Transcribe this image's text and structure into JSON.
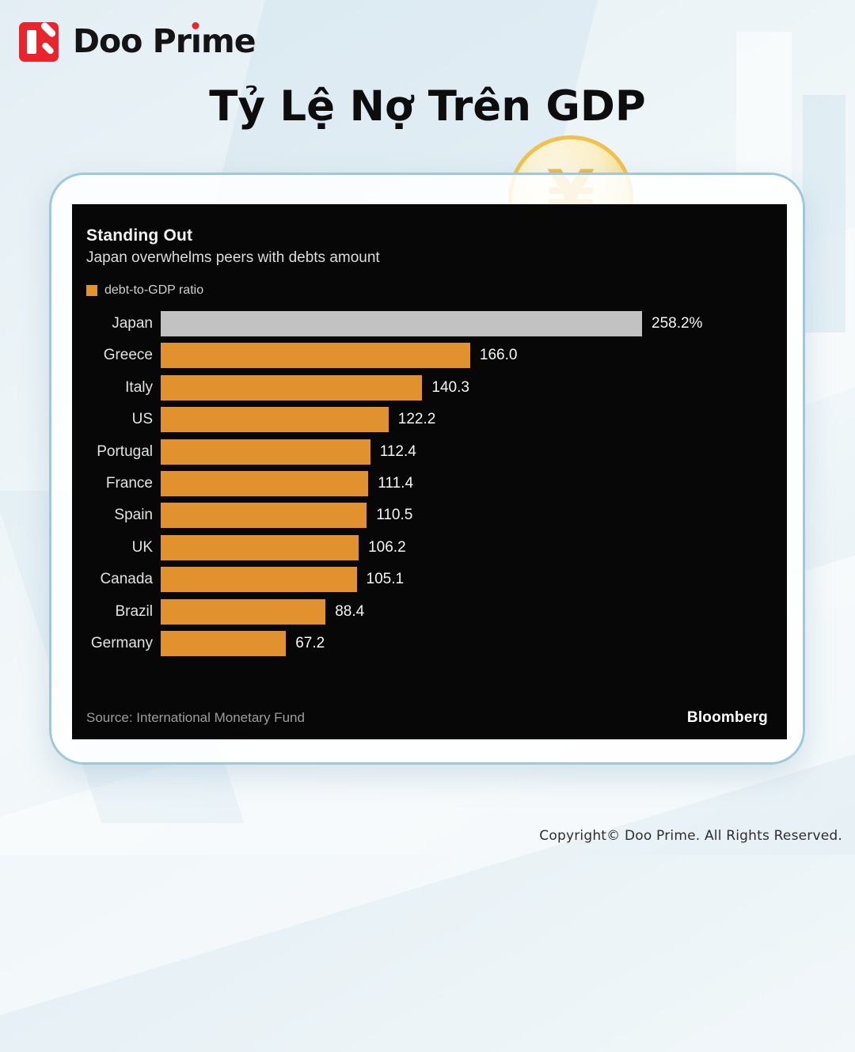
{
  "brand": {
    "logo_text": "Doo Prime",
    "icon_name": "doo-prime-logo-icon"
  },
  "page": {
    "title": "Tỷ Lệ Nợ Trên GDP",
    "copyright": "Copyright© Doo Prime. All Rights Reserved."
  },
  "icons": {
    "coin": "yen-coin-icon",
    "coin_symbol": "¥"
  },
  "theme": {
    "brand_red": "#e8252c",
    "bar_orange": "#e2912f",
    "japan_bar_gray": "#c2c2c2",
    "chart_background": "#070707",
    "card_border_blue": "#9fc9da"
  },
  "chart_data": {
    "type": "bar",
    "orientation": "horizontal",
    "title": "Standing Out",
    "subtitle": "Japan overwhelms peers with debts amount",
    "legend": [
      "debt-to-GDP ratio"
    ],
    "legend_position": "top-left",
    "grid": false,
    "categories": [
      "Japan",
      "Greece",
      "Italy",
      "US",
      "Portugal",
      "France",
      "Spain",
      "UK",
      "Canada",
      "Brazil",
      "Germany"
    ],
    "values": [
      258.2,
      166.0,
      140.3,
      122.2,
      112.4,
      111.4,
      110.5,
      106.2,
      105.1,
      88.4,
      67.2
    ],
    "value_labels": [
      "258.2%",
      "166.0",
      "140.3",
      "122.2",
      "112.4",
      "111.4",
      "110.5",
      "106.2",
      "105.1",
      "88.4",
      "67.2"
    ],
    "unit": "percent of GDP",
    "xlim": [
      0,
      258.2
    ],
    "bar_colors": {
      "default": "#e2912f",
      "highlight_category": "Japan",
      "highlight": "#c2c2c2"
    },
    "source": "Source: International Monetary Fund",
    "attribution": "Bloomberg"
  }
}
